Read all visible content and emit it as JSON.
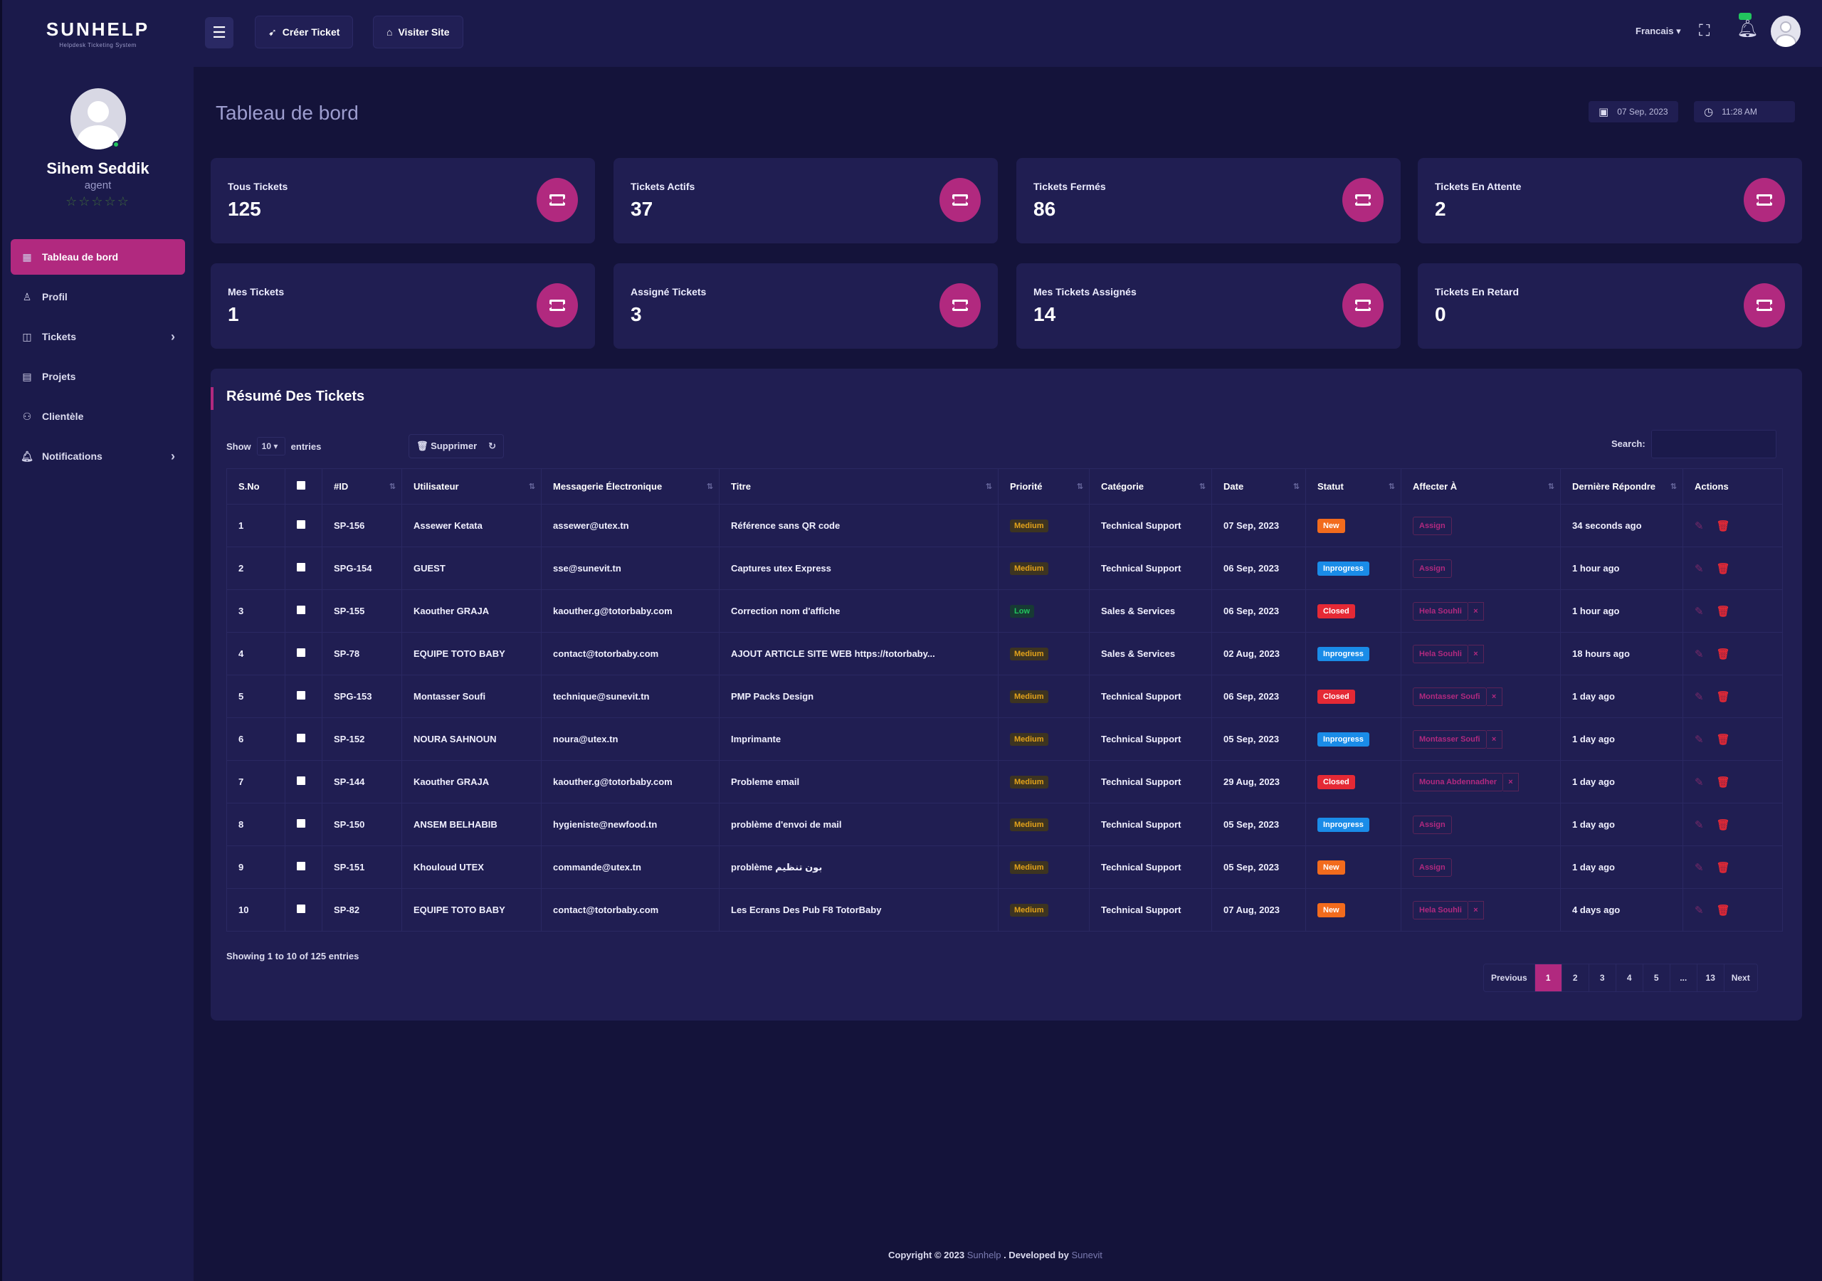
{
  "brand": {
    "logo": "SUNHELP",
    "tagline": "Helpdesk Ticketing System"
  },
  "profile": {
    "name": "Sihem Seddik",
    "role": "agent",
    "stars": "☆☆☆☆☆"
  },
  "sidebar": {
    "items": [
      {
        "label": "Tableau de bord",
        "icon": "dashboard-icon"
      },
      {
        "label": "Profil",
        "icon": "user-icon"
      },
      {
        "label": "Tickets",
        "icon": "ticket-icon"
      },
      {
        "label": "Projets",
        "icon": "project-icon"
      },
      {
        "label": "Clientèle",
        "icon": "clients-icon"
      },
      {
        "label": "Notifications",
        "icon": "bell-icon"
      }
    ]
  },
  "topbar": {
    "create_ticket": "Créer Ticket",
    "visit_site": "Visiter Site",
    "language": "Francais ▾"
  },
  "page": {
    "title": "Tableau de bord",
    "date": "07 Sep, 2023",
    "time": "11:28 AM"
  },
  "stats": [
    {
      "label": "Tous Tickets",
      "value": "125"
    },
    {
      "label": "Tickets Actifs",
      "value": "37"
    },
    {
      "label": "Tickets Fermés",
      "value": "86"
    },
    {
      "label": "Tickets En Attente",
      "value": "2"
    },
    {
      "label": "Mes Tickets",
      "value": "1"
    },
    {
      "label": "Assigné Tickets",
      "value": "3"
    },
    {
      "label": "Mes Tickets Assignés",
      "value": "14"
    },
    {
      "label": "Tickets En Retard",
      "value": "0"
    }
  ],
  "summary": {
    "title": "Résumé Des Tickets",
    "show_label": "Show",
    "entries_value": "10 ▾",
    "entries_label": "entries",
    "delete_label": "🗑 Supprimer",
    "search_label": "Search:",
    "columns": [
      "S.No",
      "",
      "#ID",
      "Utilisateur",
      "Messagerie Électronique",
      "Titre",
      "Priorité",
      "Catégorie",
      "Date",
      "Statut",
      "Affecter À",
      "Dernière Répondre",
      "Actions"
    ],
    "rows": [
      {
        "sno": "1",
        "id": "SP-156",
        "user": "Assewer Ketata",
        "email": "assewer@utex.tn",
        "title": "Référence sans QR code",
        "priority": "Medium",
        "category": "Technical Support",
        "date": "07 Sep, 2023",
        "status": "New",
        "assign": "Assign",
        "assign_x": false,
        "last": "34 seconds ago"
      },
      {
        "sno": "2",
        "id": "SPG-154",
        "user": "GUEST",
        "email": "sse@sunevit.tn",
        "title": "Captures utex Express",
        "priority": "Medium",
        "category": "Technical Support",
        "date": "06 Sep, 2023",
        "status": "Inprogress",
        "assign": "Assign",
        "assign_x": false,
        "last": "1 hour ago"
      },
      {
        "sno": "3",
        "id": "SP-155",
        "user": "Kaouther GRAJA",
        "email": "kaouther.g@totorbaby.com",
        "title": "Correction nom d'affiche",
        "priority": "Low",
        "category": "Sales & Services",
        "date": "06 Sep, 2023",
        "status": "Closed",
        "assign": "Hela Souhli",
        "assign_x": true,
        "last": "1 hour ago"
      },
      {
        "sno": "4",
        "id": "SP-78",
        "user": "EQUIPE TOTO BABY",
        "email": "contact@totorbaby.com",
        "title": "AJOUT ARTICLE SITE WEB https://totorbaby...",
        "priority": "Medium",
        "category": "Sales & Services",
        "date": "02 Aug, 2023",
        "status": "Inprogress",
        "assign": "Hela Souhli",
        "assign_x": true,
        "last": "18 hours ago"
      },
      {
        "sno": "5",
        "id": "SPG-153",
        "user": "Montasser Soufi",
        "email": "technique@sunevit.tn",
        "title": "PMP Packs Design",
        "priority": "Medium",
        "category": "Technical Support",
        "date": "06 Sep, 2023",
        "status": "Closed",
        "assign": "Montasser Soufi",
        "assign_x": true,
        "last": "1 day ago"
      },
      {
        "sno": "6",
        "id": "SP-152",
        "user": "NOURA SAHNOUN",
        "email": "noura@utex.tn",
        "title": "Imprimante",
        "priority": "Medium",
        "category": "Technical Support",
        "date": "05 Sep, 2023",
        "status": "Inprogress",
        "assign": "Montasser Soufi",
        "assign_x": true,
        "last": "1 day ago"
      },
      {
        "sno": "7",
        "id": "SP-144",
        "user": "Kaouther GRAJA",
        "email": "kaouther.g@totorbaby.com",
        "title": "Probleme email",
        "priority": "Medium",
        "category": "Technical Support",
        "date": "29 Aug, 2023",
        "status": "Closed",
        "assign": "Mouna Abdennadher",
        "assign_x": true,
        "last": "1 day ago"
      },
      {
        "sno": "8",
        "id": "SP-150",
        "user": "ANSEM BELHABIB",
        "email": "hygieniste@newfood.tn",
        "title": "problème d'envoi de mail",
        "priority": "Medium",
        "category": "Technical Support",
        "date": "05 Sep, 2023",
        "status": "Inprogress",
        "assign": "Assign",
        "assign_x": false,
        "last": "1 day ago"
      },
      {
        "sno": "9",
        "id": "SP-151",
        "user": "Khouloud UTEX",
        "email": "commande@utex.tn",
        "title": "problème بون تنظيم",
        "priority": "Medium",
        "category": "Technical Support",
        "date": "05 Sep, 2023",
        "status": "New",
        "assign": "Assign",
        "assign_x": false,
        "last": "1 day ago"
      },
      {
        "sno": "10",
        "id": "SP-82",
        "user": "EQUIPE TOTO BABY",
        "email": "contact@totorbaby.com",
        "title": "Les Ecrans Des Pub F8 TotorBaby",
        "priority": "Medium",
        "category": "Technical Support",
        "date": "07 Aug, 2023",
        "status": "New",
        "assign": "Hela Souhli",
        "assign_x": true,
        "last": "4 days ago"
      }
    ],
    "showing": "Showing 1 to 10 of 125 entries",
    "pagination": [
      "Previous",
      "1",
      "2",
      "3",
      "4",
      "5",
      "...",
      "13",
      "Next"
    ]
  },
  "footer": {
    "prefix": "Copyright © 2023",
    "brand1": "Sunhelp",
    "middle": ". Developed by",
    "brand2": "Sunevit"
  },
  "colors": {
    "accent": "#b1297f",
    "bg": "#14133a",
    "panel": "#201e52",
    "sidebar": "#1b1a4b"
  }
}
